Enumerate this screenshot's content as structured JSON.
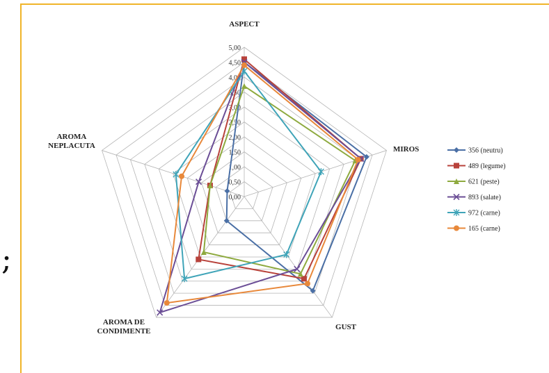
{
  "page_fragment": ";",
  "chart_data": {
    "type": "radar",
    "title": "",
    "axes": [
      "ASPECT",
      "MIROS",
      "GUST",
      "AROMA DE CONDIMENTE",
      "AROMA NEPLACUTA"
    ],
    "axis_label_lines": [
      [
        "ASPECT"
      ],
      [
        "MIROS"
      ],
      [
        "GUST"
      ],
      [
        "AROMA DE",
        "CONDIMENTE"
      ],
      [
        "AROMA",
        "NEPLACUTA"
      ]
    ],
    "rlim": [
      0,
      5
    ],
    "ticks": [
      "0,00",
      "0,50",
      "1,00",
      "1,50",
      "2,00",
      "2,50",
      "3,00",
      "3,50",
      "4,00",
      "4,50",
      "5,00"
    ],
    "grid": true,
    "legend_position": "right",
    "series": [
      {
        "name": "356 (neutru)",
        "color": "#4a6fa5",
        "marker": "diamond",
        "values": [
          4.5,
          4.3,
          3.9,
          1.0,
          0.6
        ]
      },
      {
        "name": "489 (legume)",
        "color": "#b8423b",
        "marker": "square",
        "values": [
          4.6,
          4.1,
          3.4,
          2.6,
          1.2
        ]
      },
      {
        "name": "621 (peste)",
        "color": "#8eaa3f",
        "marker": "triangle",
        "values": [
          3.7,
          3.9,
          3.2,
          2.3,
          1.2
        ]
      },
      {
        "name": "893 (salate)",
        "color": "#6b4e96",
        "marker": "x",
        "values": [
          4.5,
          4.1,
          3.0,
          4.8,
          1.6
        ]
      },
      {
        "name": "972 (carne)",
        "color": "#3fa4b8",
        "marker": "star",
        "values": [
          4.2,
          2.7,
          2.4,
          3.4,
          2.4
        ]
      },
      {
        "name": "165 (carne)",
        "color": "#e8883a",
        "marker": "circle",
        "values": [
          4.4,
          4.0,
          3.6,
          4.4,
          2.2
        ]
      }
    ]
  }
}
